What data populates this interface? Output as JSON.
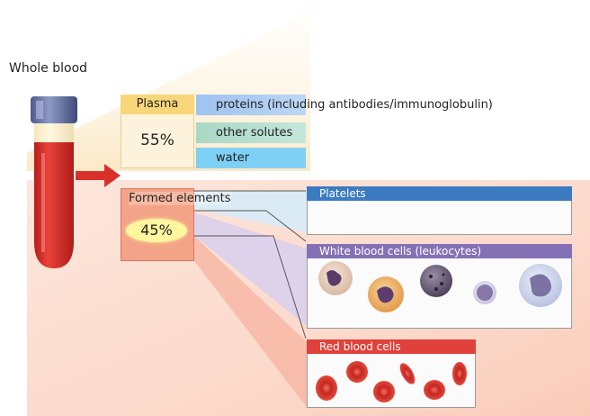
{
  "title": "Whole blood",
  "plasma": {
    "label": "Plasma",
    "percent": "55%",
    "components": [
      "proteins (including antibodies/immunoglobulin)",
      "other solutes",
      "water"
    ]
  },
  "formed": {
    "label": "Formed elements",
    "percent": "45%"
  },
  "panels": {
    "platelets": "Platelets",
    "wbc": "White blood cells (leukocytes)",
    "rbc": "Red blood cells"
  },
  "colors": {
    "plasma_header": "#f7d77a",
    "platelets": "#3b7bc2",
    "wbc": "#8471b5",
    "rbc": "#e0413a",
    "blood": "#d9302a"
  }
}
